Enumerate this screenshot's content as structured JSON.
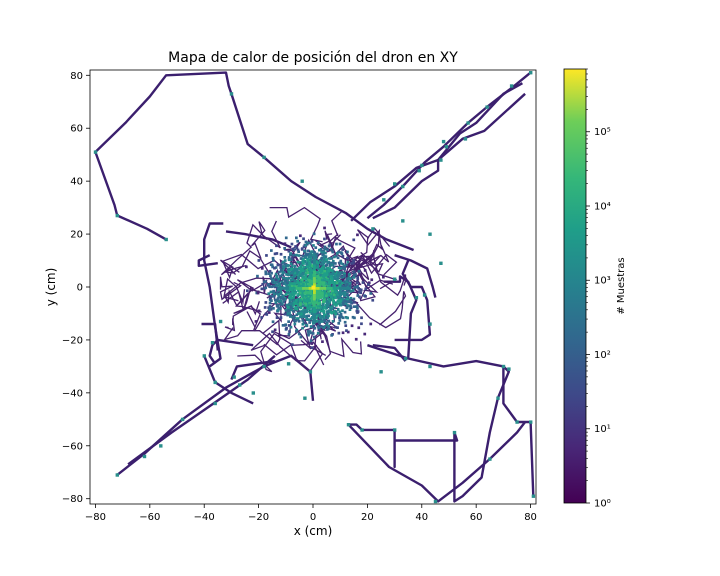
{
  "chart_data": {
    "type": "heatmap",
    "title": "Mapa de calor de posición del dron en XY",
    "xlabel": "x (cm)",
    "ylabel": "y (cm)",
    "xlim": [
      -82,
      82
    ],
    "ylim": [
      -82,
      82
    ],
    "x_ticks": [
      -80,
      -60,
      -40,
      -20,
      0,
      20,
      40,
      60,
      80
    ],
    "y_ticks": [
      -80,
      -60,
      -40,
      -20,
      0,
      20,
      40,
      60,
      80
    ],
    "colormap": "viridis",
    "colorbar": {
      "label": "# Muestras",
      "scale": "log",
      "range": [
        1,
        700000
      ],
      "ticks": [
        {
          "value": 1,
          "label": "10⁰"
        },
        {
          "value": 10,
          "label": "10¹"
        },
        {
          "value": 100,
          "label": "10²"
        },
        {
          "value": 1000,
          "label": "10³"
        },
        {
          "value": 10000,
          "label": "10⁴"
        },
        {
          "value": 100000,
          "label": "10⁵"
        }
      ]
    },
    "central_cluster": {
      "center": [
        0,
        0
      ],
      "peak_count": 700000,
      "spread_cm": 18
    },
    "trajectories": [
      [
        [
          -54,
          18
        ],
        [
          -61,
          22
        ],
        [
          -72,
          27
        ],
        [
          -73,
          31
        ],
        [
          -80,
          51
        ],
        [
          -69,
          62
        ],
        [
          -60,
          72
        ],
        [
          -54,
          80
        ],
        [
          -32,
          81
        ],
        [
          -31,
          76
        ],
        [
          -30,
          73
        ],
        [
          -24,
          54
        ],
        [
          -18,
          49
        ],
        [
          -8,
          40
        ],
        [
          1,
          34
        ],
        [
          12,
          28
        ],
        [
          20,
          22
        ],
        [
          27,
          18
        ],
        [
          37,
          14
        ]
      ],
      [
        [
          -72,
          -71
        ],
        [
          -62,
          -63
        ],
        [
          -48,
          -50
        ],
        [
          -32,
          -38
        ],
        [
          -18,
          -30
        ],
        [
          -8,
          -26
        ],
        [
          -1,
          -32
        ],
        [
          0,
          -43
        ]
      ],
      [
        [
          -68,
          -67
        ],
        [
          -52,
          -55
        ],
        [
          -38,
          -45
        ],
        [
          -24,
          -35
        ],
        [
          -14,
          -26
        ]
      ],
      [
        [
          80,
          81
        ],
        [
          74,
          76
        ],
        [
          64,
          68
        ],
        [
          57,
          62
        ],
        [
          48,
          53
        ],
        [
          41,
          47
        ],
        [
          33,
          38
        ],
        [
          26,
          31
        ],
        [
          20,
          26
        ]
      ],
      [
        [
          77,
          77
        ],
        [
          70,
          73
        ],
        [
          60,
          62
        ],
        [
          54,
          58
        ],
        [
          46,
          48
        ],
        [
          38,
          45
        ],
        [
          30,
          38
        ],
        [
          21,
          32
        ],
        [
          14,
          25
        ]
      ],
      [
        [
          78,
          73
        ],
        [
          63,
          59
        ],
        [
          55,
          56
        ],
        [
          46,
          48
        ],
        [
          46,
          44
        ],
        [
          40,
          40
        ],
        [
          30,
          30
        ],
        [
          22,
          26
        ]
      ],
      [
        [
          20,
          -22
        ],
        [
          35,
          -27
        ],
        [
          48,
          -30
        ],
        [
          60,
          -28
        ],
        [
          70,
          -30
        ],
        [
          70,
          -44
        ],
        [
          75,
          -51
        ],
        [
          80,
          -51
        ],
        [
          81,
          -79
        ]
      ],
      [
        [
          70,
          -30
        ],
        [
          72,
          -32
        ],
        [
          68,
          -42
        ],
        [
          65,
          -55
        ],
        [
          62,
          -72
        ],
        [
          55,
          -79
        ],
        [
          52,
          -81
        ],
        [
          52,
          -55
        ],
        [
          53,
          -58
        ],
        [
          30,
          -58
        ],
        [
          30,
          -68
        ],
        [
          30,
          -54
        ],
        [
          18,
          -54
        ],
        [
          16,
          -52
        ],
        [
          13,
          -52
        ],
        [
          28,
          -68
        ],
        [
          40,
          -75
        ],
        [
          46,
          -81
        ],
        [
          55,
          -74
        ],
        [
          65,
          -65
        ],
        [
          75,
          -55
        ],
        [
          78,
          -51
        ]
      ],
      [
        [
          -33,
          24
        ],
        [
          -38,
          24
        ],
        [
          -40,
          18
        ],
        [
          -40,
          10
        ],
        [
          -38,
          0
        ],
        [
          -36,
          -15
        ],
        [
          -34,
          -27
        ],
        [
          -38,
          -30
        ]
      ],
      [
        [
          -41,
          -14
        ],
        [
          -36,
          -14
        ],
        [
          -35,
          -24
        ]
      ],
      [
        [
          -22,
          -22
        ],
        [
          -35,
          -20
        ],
        [
          -37,
          -22
        ],
        [
          -38,
          -26
        ],
        [
          -36,
          -29
        ]
      ],
      [
        [
          -40,
          -26
        ],
        [
          -36,
          -36
        ],
        [
          -30,
          -40
        ],
        [
          -22,
          -44
        ]
      ],
      [
        [
          -35,
          9
        ],
        [
          -42,
          8
        ],
        [
          -42,
          10
        ],
        [
          -38,
          12
        ]
      ],
      [
        [
          26,
          2
        ],
        [
          32,
          2
        ],
        [
          32,
          4
        ],
        [
          35,
          2
        ],
        [
          38,
          -5
        ],
        [
          36,
          -10
        ],
        [
          35,
          -27
        ]
      ],
      [
        [
          35,
          10
        ],
        [
          33,
          5
        ],
        [
          36,
          0
        ],
        [
          40,
          0
        ],
        [
          42,
          -5
        ],
        [
          43,
          -18
        ],
        [
          40,
          -20
        ],
        [
          30,
          -20
        ]
      ],
      [
        [
          30,
          12
        ],
        [
          36,
          10
        ],
        [
          42,
          7
        ],
        [
          44,
          0
        ],
        [
          45,
          -4
        ]
      ],
      [
        [
          22,
          -22
        ],
        [
          30,
          -23
        ],
        [
          34,
          -28
        ]
      ],
      [
        [
          -8,
          15
        ],
        [
          -15,
          18
        ],
        [
          -25,
          20
        ],
        [
          -32,
          21
        ]
      ],
      [
        [
          -14,
          -28
        ],
        [
          -28,
          -30
        ],
        [
          -30,
          -35
        ]
      ]
    ],
    "markers": [
      [
        -80,
        51
      ],
      [
        -72,
        27
      ],
      [
        -54,
        18
      ],
      [
        -30,
        73
      ],
      [
        -18,
        49
      ],
      [
        -4,
        40
      ],
      [
        -72,
        -71
      ],
      [
        -62,
        -64
      ],
      [
        -56,
        -60
      ],
      [
        -48,
        -50
      ],
      [
        -36,
        -44
      ],
      [
        -27,
        -37
      ],
      [
        -40,
        -26
      ],
      [
        -37,
        -21
      ],
      [
        -36,
        -36
      ],
      [
        -29,
        -34
      ],
      [
        -34,
        -13
      ],
      [
        80,
        81
      ],
      [
        73,
        76
      ],
      [
        57,
        62
      ],
      [
        49,
        53
      ],
      [
        40,
        46
      ],
      [
        33,
        38
      ],
      [
        48,
        55
      ],
      [
        64,
        68
      ],
      [
        56,
        56
      ],
      [
        47,
        48
      ],
      [
        39,
        44
      ],
      [
        26,
        33
      ],
      [
        30,
        39
      ],
      [
        43,
        -14
      ],
      [
        41,
        -3
      ],
      [
        38,
        -4
      ],
      [
        30,
        3
      ],
      [
        22,
        22
      ],
      [
        33,
        25
      ],
      [
        43,
        20
      ],
      [
        47,
        9
      ],
      [
        70,
        -30
      ],
      [
        72,
        -31
      ],
      [
        68,
        -42
      ],
      [
        75,
        -51
      ],
      [
        80,
        -51
      ],
      [
        81,
        -79
      ],
      [
        52,
        -55
      ],
      [
        30,
        -54
      ],
      [
        18,
        -54
      ],
      [
        13,
        -52
      ],
      [
        45,
        -81
      ],
      [
        65,
        -65
      ],
      [
        -1,
        -32
      ],
      [
        -3,
        -42
      ],
      [
        -9,
        -29
      ],
      [
        -18,
        -30
      ],
      [
        -22,
        -40
      ],
      [
        25,
        -32
      ],
      [
        34,
        -27
      ],
      [
        43,
        -30
      ]
    ]
  }
}
